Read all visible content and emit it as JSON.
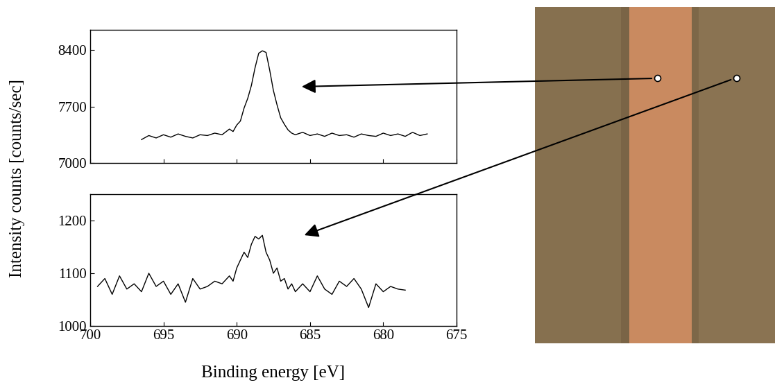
{
  "chart_data": [
    {
      "type": "line",
      "color": "#000000",
      "line_style": "solid",
      "tick_labels": "y",
      "x": [
        696.5,
        696,
        695.5,
        695,
        694.5,
        694,
        693.5,
        693,
        692.5,
        692,
        691.5,
        691,
        690.5,
        690.25,
        690,
        689.75,
        689.5,
        689.25,
        689,
        688.75,
        688.5,
        688.25,
        688,
        687.75,
        687.5,
        687.25,
        687,
        686.75,
        686.5,
        686.25,
        686,
        685.5,
        685,
        684.5,
        684,
        683.5,
        683,
        682.5,
        682,
        681.5,
        681,
        680.5,
        680,
        679.5,
        679,
        678.5,
        678,
        677.5,
        677
      ],
      "values": [
        7290,
        7340,
        7310,
        7350,
        7320,
        7360,
        7330,
        7310,
        7350,
        7340,
        7370,
        7350,
        7420,
        7390,
        7470,
        7520,
        7680,
        7800,
        7960,
        8180,
        8360,
        8390,
        8370,
        8150,
        7900,
        7720,
        7560,
        7480,
        7410,
        7370,
        7350,
        7380,
        7340,
        7360,
        7330,
        7370,
        7340,
        7350,
        7320,
        7360,
        7340,
        7330,
        7370,
        7340,
        7360,
        7330,
        7380,
        7340,
        7360
      ],
      "xlim": [
        700,
        675
      ],
      "xticks": [
        700,
        695,
        690,
        685,
        680,
        675
      ],
      "ylim": [
        7000,
        8650
      ],
      "yticks": [
        7000,
        7700,
        8400
      ]
    },
    {
      "type": "line",
      "color": "#000000",
      "line_style": "solid",
      "x": [
        699.5,
        699,
        698.5,
        698,
        697.5,
        697,
        696.5,
        696,
        695.5,
        695,
        694.5,
        694,
        693.5,
        693,
        692.5,
        692,
        691.5,
        691,
        690.5,
        690.25,
        690,
        689.75,
        689.5,
        689.25,
        689,
        688.75,
        688.5,
        688.25,
        688,
        687.75,
        687.5,
        687.25,
        687,
        686.75,
        686.5,
        686.25,
        686,
        685.5,
        685,
        684.5,
        684,
        683.5,
        683,
        682.5,
        682,
        681.5,
        681,
        680.5,
        680,
        679.5,
        679,
        678.5
      ],
      "values": [
        1075,
        1090,
        1060,
        1095,
        1070,
        1080,
        1065,
        1100,
        1075,
        1085,
        1060,
        1080,
        1045,
        1090,
        1070,
        1075,
        1085,
        1080,
        1095,
        1085,
        1110,
        1125,
        1140,
        1130,
        1155,
        1170,
        1165,
        1172,
        1140,
        1125,
        1100,
        1110,
        1085,
        1090,
        1070,
        1080,
        1065,
        1080,
        1065,
        1095,
        1070,
        1060,
        1085,
        1075,
        1090,
        1070,
        1035,
        1080,
        1065,
        1075,
        1070,
        1068
      ],
      "xlim": [
        700,
        675
      ],
      "xticks": [
        700,
        695,
        690,
        685,
        680,
        675
      ],
      "ylim": [
        1000,
        1250
      ],
      "yticks": [
        1000,
        1100,
        1200
      ]
    }
  ],
  "y_label": "Intensity counts [counts/sec]",
  "x_label": "Binding energy [eV]"
}
